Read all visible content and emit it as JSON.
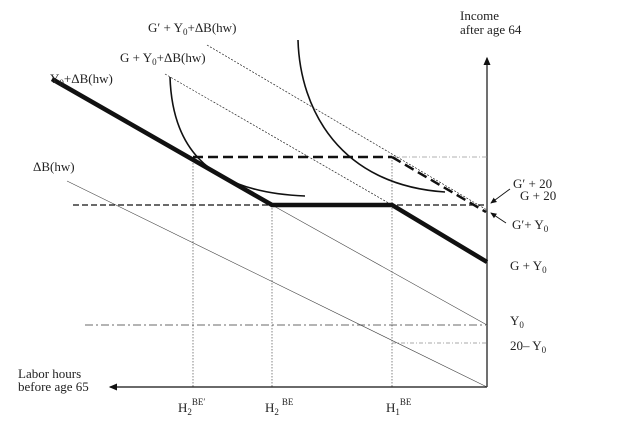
{
  "axes": {
    "y_label": [
      "Income",
      "after age 64"
    ],
    "x_label": [
      "Labor hours",
      "before age 65"
    ]
  },
  "line_labels": {
    "gprime_y0_db": {
      "a": "G′ + Y",
      "sub": "0",
      "b": "+ΔB(hw)"
    },
    "g_y0_db": {
      "a": "G + Y",
      "sub": "0",
      "b": "+ΔB(hw)"
    },
    "y0_db": {
      "a": "Y",
      "sub": "0",
      "b": "+ΔB(hw)"
    },
    "db": "ΔB(hw)"
  },
  "y_ticks": {
    "gprime_20": "G′ + 20",
    "g_20": "G + 20",
    "gprime_y0": {
      "a": "G′+ Y",
      "sub": "0"
    },
    "g_y0": {
      "a": "G + Y",
      "sub": "0"
    },
    "y0": {
      "a": "Y",
      "sub": "0"
    },
    "twenty_y0": {
      "a": "20– Y",
      "sub": "0"
    }
  },
  "x_ticks": {
    "h2_be_prime": {
      "a": "H",
      "sub": "2",
      "sup": "BE′"
    },
    "h2_be": {
      "a": "H",
      "sub": "2",
      "sup": "BE"
    },
    "h1_be": {
      "a": "H",
      "sub": "1",
      "sup": "BE"
    }
  }
}
